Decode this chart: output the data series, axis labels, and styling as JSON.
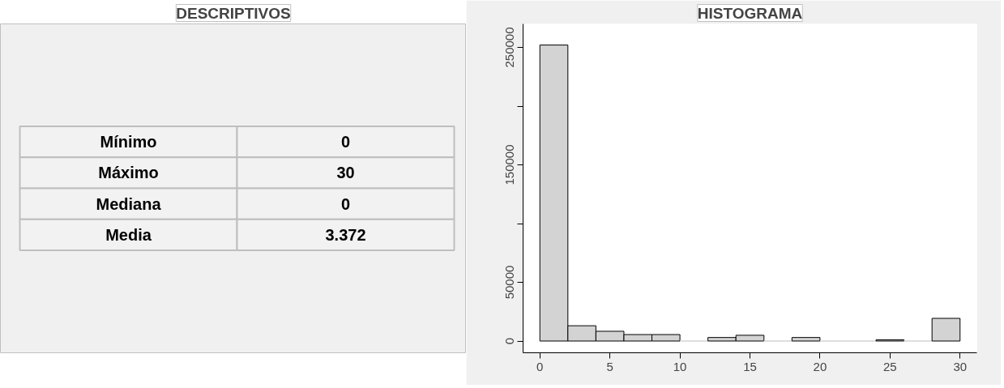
{
  "chart_data": [
    {
      "type": "other",
      "title": "DESCRIPTIVOS",
      "categories": [
        "Mínimo",
        "Máximo",
        "Mediana",
        "Media"
      ],
      "values": [
        0,
        30,
        0,
        3.372
      ],
      "data_labels": true
    },
    {
      "type": "histogram",
      "title": "HISTOGRAMA",
      "bins": [
        0,
        2,
        4,
        6,
        8,
        10,
        12,
        14,
        16,
        18,
        20,
        22,
        24,
        26,
        28,
        30
      ],
      "values": [
        252000,
        13000,
        8300,
        5500,
        5500,
        0,
        3000,
        4900,
        0,
        3000,
        0,
        0,
        1000,
        0,
        19300
      ],
      "color": "#d3d3d3",
      "xlim": [
        -1.2,
        31.2
      ],
      "ylim": [
        -10000,
        270000
      ],
      "xticks": [
        0,
        5,
        10,
        15,
        20,
        25,
        30
      ],
      "yticks": [
        0,
        50000,
        {
          "value": 100000,
          "label": null
        },
        150000,
        {
          "value": 200000,
          "label": null
        },
        250000
      ],
      "grid": false
    }
  ]
}
